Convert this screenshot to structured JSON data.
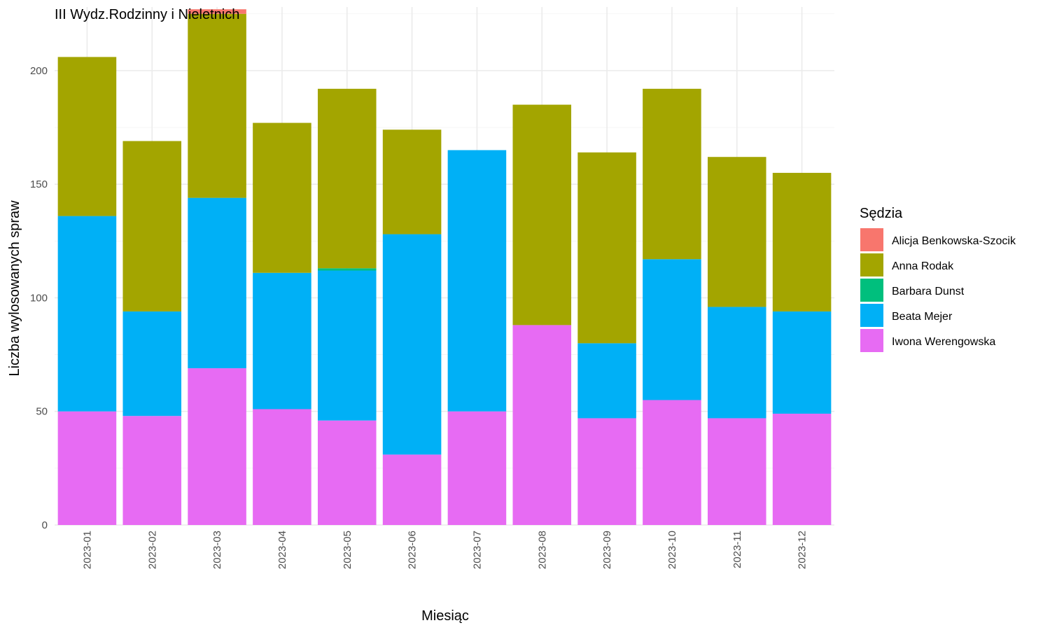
{
  "chart_data": {
    "type": "bar",
    "stacked": true,
    "title": "III Wydz.Rodzinny i Nieletnich",
    "xlabel": "Miesiąc",
    "ylabel": "Liczba wylosowanych spraw",
    "ylim": [
      0,
      228
    ],
    "yticks": [
      0,
      50,
      100,
      150,
      200
    ],
    "grid": true,
    "legend_position": "right",
    "legend_title": "Sędzia",
    "categories": [
      "2023-01",
      "2023-02",
      "2023-03",
      "2023-04",
      "2023-05",
      "2023-06",
      "2023-07",
      "2023-08",
      "2023-09",
      "2023-10",
      "2023-11",
      "2023-12"
    ],
    "series": [
      {
        "name": "Alicja Benkowska-Szocik",
        "color": "#F8766D",
        "values": [
          0,
          0,
          2,
          0,
          0,
          0,
          0,
          0,
          0,
          0,
          0,
          0
        ]
      },
      {
        "name": "Anna Rodak",
        "color": "#A3A500",
        "values": [
          70,
          75,
          81,
          66,
          79,
          46,
          0,
          97,
          84,
          75,
          66,
          61
        ]
      },
      {
        "name": "Barbara Dunst",
        "color": "#00BF7D",
        "values": [
          0,
          0,
          0,
          0,
          1,
          0,
          0,
          0,
          0,
          0,
          0,
          0
        ]
      },
      {
        "name": "Beata Mejer",
        "color": "#00B0F6",
        "values": [
          86,
          46,
          75,
          60,
          66,
          97,
          115,
          0,
          33,
          62,
          49,
          45
        ]
      },
      {
        "name": "Iwona Werengowska",
        "color": "#E76BF3",
        "values": [
          50,
          48,
          69,
          51,
          46,
          31,
          50,
          88,
          47,
          55,
          47,
          49
        ]
      }
    ]
  }
}
